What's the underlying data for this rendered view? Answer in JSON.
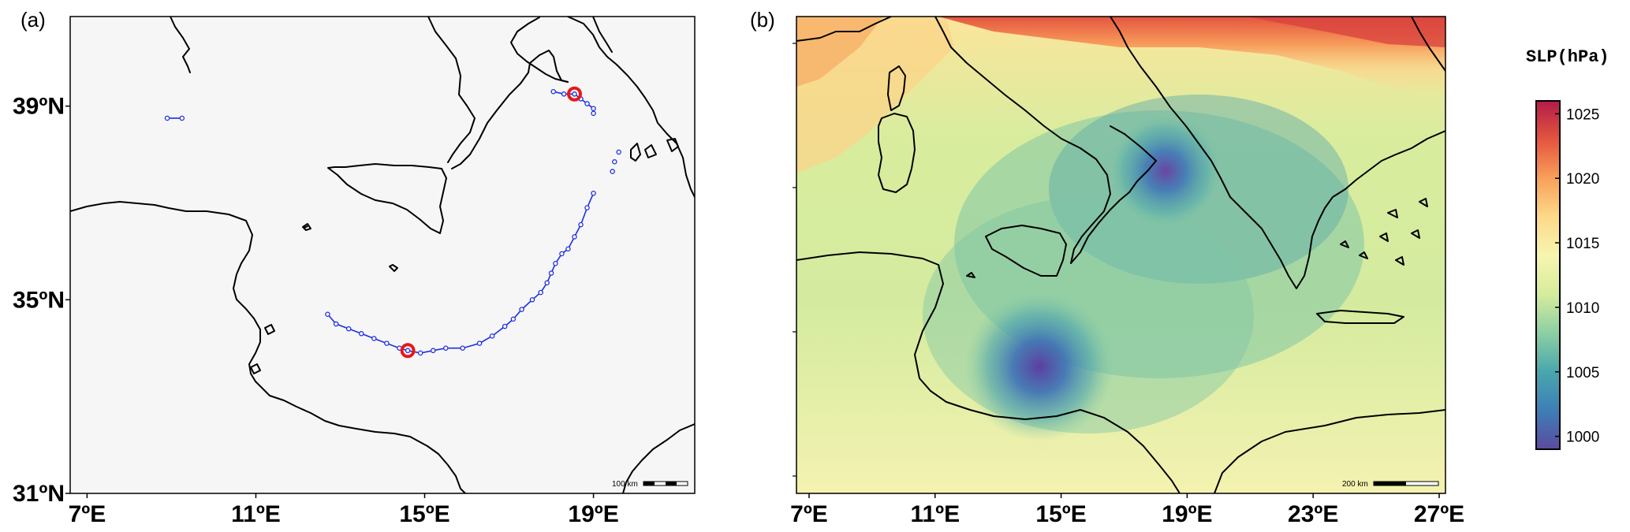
{
  "panel_a": {
    "label": "(a)",
    "x_ticks": [
      {
        "lon": 7,
        "label": "7ºE"
      },
      {
        "lon": 11,
        "label": "11ºE"
      },
      {
        "lon": 15,
        "label": "15ºE"
      },
      {
        "lon": 19,
        "label": "19ºE"
      }
    ],
    "y_ticks": [
      {
        "lat": 31,
        "label": "31ºN"
      },
      {
        "lat": 35,
        "label": "35ºN"
      },
      {
        "lat": 39,
        "label": "39ºN"
      }
    ],
    "lon_range": [
      6.6,
      21.4
    ],
    "lat_range": [
      31.0,
      40.85
    ],
    "scale_bar_label": "100 km",
    "track_color": "#1f2fe0",
    "highlight_color": "#e8171b",
    "tracks": [
      {
        "name": "southern cyclone track",
        "points": [
          [
            12.7,
            34.7
          ],
          [
            12.9,
            34.5
          ],
          [
            13.2,
            34.4
          ],
          [
            13.5,
            34.3
          ],
          [
            13.8,
            34.2
          ],
          [
            14.1,
            34.1
          ],
          [
            14.4,
            34.0
          ],
          [
            14.6,
            33.95
          ],
          [
            14.9,
            33.9
          ],
          [
            15.2,
            33.95
          ],
          [
            15.5,
            34.0
          ],
          [
            15.9,
            34.0
          ],
          [
            16.3,
            34.1
          ],
          [
            16.6,
            34.25
          ],
          [
            16.9,
            34.45
          ],
          [
            17.1,
            34.6
          ],
          [
            17.3,
            34.8
          ],
          [
            17.55,
            35.0
          ],
          [
            17.75,
            35.15
          ],
          [
            17.9,
            35.35
          ],
          [
            18.0,
            35.55
          ],
          [
            18.1,
            35.75
          ],
          [
            18.25,
            35.95
          ],
          [
            18.4,
            36.05
          ],
          [
            18.55,
            36.3
          ],
          [
            18.7,
            36.55
          ],
          [
            18.85,
            36.9
          ],
          [
            19.0,
            37.2
          ]
        ]
      },
      {
        "name": "northern cyclone track",
        "points": [
          [
            18.05,
            39.3
          ],
          [
            18.3,
            39.25
          ],
          [
            18.55,
            39.25
          ],
          [
            18.7,
            39.15
          ],
          [
            18.85,
            39.05
          ],
          [
            19.0,
            38.95
          ],
          [
            19.0,
            38.85
          ]
        ]
      },
      {
        "name": "short segment west",
        "points": [
          [
            8.9,
            38.75
          ],
          [
            9.25,
            38.75
          ]
        ]
      },
      {
        "name": "isolated points east",
        "points": [
          [
            19.6,
            38.05
          ],
          [
            19.5,
            37.85
          ],
          [
            19.45,
            37.65
          ]
        ]
      }
    ],
    "highlights": [
      {
        "name": "southern-cyclone-marker",
        "point": [
          14.6,
          33.95
        ]
      },
      {
        "name": "northern-cyclone-marker",
        "point": [
          18.55,
          39.25
        ]
      }
    ]
  },
  "panel_b": {
    "label": "(b)",
    "x_ticks": [
      {
        "lon": 7,
        "label": "7ºE"
      },
      {
        "lon": 11,
        "label": "11ºE"
      },
      {
        "lon": 15,
        "label": "15ºE"
      },
      {
        "lon": 19,
        "label": "19ºE"
      },
      {
        "lon": 23,
        "label": "23ºE"
      },
      {
        "lon": 27,
        "label": "27ºE"
      }
    ],
    "lon_range": [
      6.6,
      27.2
    ],
    "lat_range": [
      30.0,
      43.0
    ],
    "scale_bar_label": "200 km",
    "field_name": "SLP",
    "lows": [
      {
        "name": "western-low",
        "center": [
          14.6,
          34.0
        ],
        "value": 1000
      },
      {
        "name": "northern-low",
        "center": [
          18.5,
          39.4
        ],
        "value": 1001
      }
    ]
  },
  "colorbar": {
    "title": "SLP(hPa)",
    "min": 999,
    "max": 1026,
    "ticks": [
      1000,
      1005,
      1010,
      1015,
      1020,
      1025
    ],
    "colors": [
      "#5d4a9f",
      "#3c7fb7",
      "#4aa6ad",
      "#8ccfa3",
      "#d6ec9c",
      "#f7f5b0",
      "#fdd98a",
      "#f8a05a",
      "#e4553e",
      "#b31c48"
    ]
  },
  "colors": {
    "land_outline": "#000000",
    "panel_bg": "#f6f6f6"
  }
}
